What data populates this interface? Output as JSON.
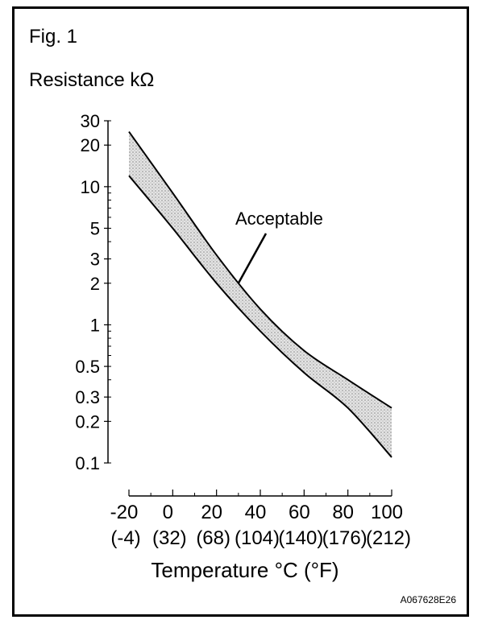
{
  "figure_label": "Fig. 1",
  "image_code": "A067628E26",
  "chart_data": {
    "type": "area",
    "title": "",
    "ylabel": "Resistance kΩ",
    "xlabel": "Temperature °C (°F)",
    "y_scale": "log",
    "ylim": [
      0.1,
      30
    ],
    "xlim": [
      -20,
      100
    ],
    "y_ticks": [
      {
        "value": 0.1,
        "label": "0.1"
      },
      {
        "value": 0.2,
        "label": "0.2"
      },
      {
        "value": 0.3,
        "label": "0.3"
      },
      {
        "value": 0.5,
        "label": "0.5"
      },
      {
        "value": 1,
        "label": "1"
      },
      {
        "value": 2,
        "label": "2"
      },
      {
        "value": 3,
        "label": "3"
      },
      {
        "value": 5,
        "label": "5"
      },
      {
        "value": 10,
        "label": "10"
      },
      {
        "value": 20,
        "label": "20"
      },
      {
        "value": 30,
        "label": "30"
      }
    ],
    "x_ticks": [
      {
        "value": -20,
        "label": "-20",
        "sub": "(-4)"
      },
      {
        "value": 0,
        "label": "0",
        "sub": "(32)"
      },
      {
        "value": 20,
        "label": "20",
        "sub": "(68)"
      },
      {
        "value": 40,
        "label": "40",
        "sub": "(104)"
      },
      {
        "value": 60,
        "label": "60",
        "sub": "(140)"
      },
      {
        "value": 80,
        "label": "80",
        "sub": "(176)"
      },
      {
        "value": 100,
        "label": "100",
        "sub": "(212)"
      }
    ],
    "band": {
      "upper": {
        "x": [
          -20,
          0,
          20,
          40,
          60,
          80,
          100
        ],
        "y": [
          25,
          9,
          3.2,
          1.3,
          0.65,
          0.4,
          0.25
        ]
      },
      "lower": {
        "x": [
          -20,
          0,
          20,
          40,
          60,
          80,
          100
        ],
        "y": [
          12,
          5,
          2,
          0.9,
          0.45,
          0.25,
          0.11
        ]
      }
    },
    "annotation": {
      "text": "Acceptable",
      "x": 30,
      "y": 2.0
    },
    "colors": {
      "band_fill": "#cfcfcf",
      "line": "#000000"
    },
    "grid": false,
    "legend": "none"
  }
}
